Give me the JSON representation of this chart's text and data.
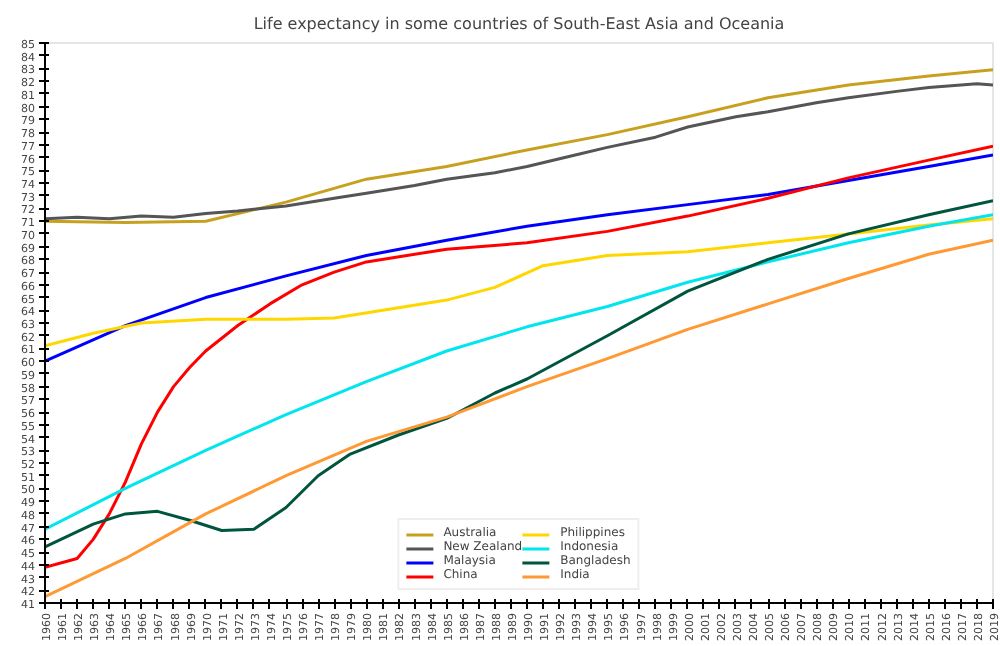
{
  "chart_data": {
    "type": "line",
    "title": "Life expectancy in some countries of South-East Asia and Oceania",
    "xlim": [
      1960,
      2019
    ],
    "xticks": [
      1960,
      1961,
      1962,
      1963,
      1964,
      1965,
      1966,
      1967,
      1968,
      1969,
      1970,
      1971,
      1972,
      1973,
      1974,
      1975,
      1976,
      1977,
      1978,
      1979,
      1980,
      1981,
      1982,
      1983,
      1984,
      1985,
      1986,
      1987,
      1988,
      1989,
      1990,
      1991,
      1992,
      1993,
      1994,
      1995,
      1996,
      1997,
      1998,
      1999,
      2000,
      2001,
      2002,
      2003,
      2004,
      2005,
      2006,
      2007,
      2008,
      2009,
      2010,
      2011,
      2012,
      2013,
      2014,
      2015,
      2016,
      2017,
      2018,
      2019
    ],
    "ylim": [
      41,
      85
    ],
    "yticks": [
      41,
      42,
      43,
      44,
      45,
      46,
      47,
      48,
      49,
      50,
      51,
      52,
      53,
      54,
      55,
      56,
      57,
      58,
      59,
      60,
      61,
      62,
      63,
      64,
      65,
      66,
      67,
      68,
      69,
      70,
      71,
      72,
      73,
      74,
      75,
      76,
      77,
      78,
      79,
      80,
      81,
      82,
      83,
      84,
      85
    ],
    "grid": false,
    "legend": "bottom",
    "line_style": "solid",
    "marker": "none",
    "series": [
      {
        "name": "Australia",
        "color": "#c8a020",
        "x": [
          1960,
          1965,
          1970,
          1975,
          1980,
          1985,
          1990,
          1995,
          2000,
          2005,
          2010,
          2015,
          2019
        ],
        "values": [
          71.0,
          70.9,
          71.0,
          72.5,
          74.3,
          75.3,
          76.6,
          77.8,
          79.2,
          80.7,
          81.7,
          82.4,
          82.9
        ]
      },
      {
        "name": "New Zealand",
        "color": "#555555",
        "x": [
          1960,
          1962,
          1964,
          1966,
          1968,
          1970,
          1972,
          1975,
          1978,
          1980,
          1983,
          1985,
          1988,
          1990,
          1993,
          1995,
          1998,
          2000,
          2003,
          2005,
          2008,
          2010,
          2013,
          2015,
          2018,
          2019
        ],
        "values": [
          71.2,
          71.3,
          71.2,
          71.4,
          71.3,
          71.6,
          71.8,
          72.2,
          72.8,
          73.2,
          73.8,
          74.3,
          74.8,
          75.3,
          76.2,
          76.8,
          77.6,
          78.4,
          79.2,
          79.6,
          80.3,
          80.7,
          81.2,
          81.5,
          81.8,
          81.7
        ]
      },
      {
        "name": "Malaysia",
        "color": "#0000ff",
        "x": [
          1960,
          1965,
          1970,
          1975,
          1980,
          1985,
          1990,
          1995,
          2000,
          2005,
          2010,
          2015,
          2019
        ],
        "values": [
          60.0,
          62.8,
          65.0,
          66.7,
          68.3,
          69.5,
          70.6,
          71.5,
          72.3,
          73.1,
          74.2,
          75.3,
          76.2
        ]
      },
      {
        "name": "China",
        "color": "#ff0000",
        "x": [
          1960,
          1962,
          1963,
          1964,
          1965,
          1966,
          1967,
          1968,
          1969,
          1970,
          1972,
          1974,
          1976,
          1978,
          1980,
          1985,
          1990,
          1995,
          2000,
          2005,
          2010,
          2015,
          2019
        ],
        "values": [
          43.8,
          44.5,
          46.0,
          48.0,
          50.5,
          53.5,
          56.0,
          58.0,
          59.5,
          60.8,
          62.8,
          64.5,
          66.0,
          67.0,
          67.8,
          68.8,
          69.3,
          70.2,
          71.4,
          72.8,
          74.4,
          75.8,
          76.9
        ]
      },
      {
        "name": "Philippines",
        "color": "#ffd700",
        "x": [
          1960,
          1963,
          1966,
          1970,
          1975,
          1978,
          1982,
          1985,
          1988,
          1991,
          1995,
          2000,
          2005,
          2010,
          2015,
          2019
        ],
        "values": [
          61.2,
          62.2,
          63.0,
          63.3,
          63.3,
          63.4,
          64.2,
          64.8,
          65.8,
          67.5,
          68.3,
          68.6,
          69.3,
          70.0,
          70.7,
          71.2
        ]
      },
      {
        "name": "Indonesia",
        "color": "#00e5ee",
        "x": [
          1960,
          1965,
          1970,
          1975,
          1980,
          1985,
          1990,
          1995,
          2000,
          2005,
          2010,
          2015,
          2019
        ],
        "values": [
          46.8,
          50.0,
          53.0,
          55.8,
          58.4,
          60.8,
          62.7,
          64.3,
          66.2,
          67.8,
          69.3,
          70.6,
          71.5
        ]
      },
      {
        "name": "Bangladesh",
        "color": "#00553f",
        "x": [
          1960,
          1963,
          1965,
          1967,
          1969,
          1971,
          1973,
          1975,
          1977,
          1979,
          1982,
          1985,
          1988,
          1990,
          1995,
          2000,
          2005,
          2010,
          2015,
          2019
        ],
        "values": [
          45.4,
          47.2,
          48.0,
          48.2,
          47.5,
          46.7,
          46.8,
          48.5,
          51.0,
          52.7,
          54.2,
          55.5,
          57.5,
          58.6,
          62.0,
          65.5,
          68.0,
          70.0,
          71.5,
          72.6
        ]
      },
      {
        "name": "India",
        "color": "#ff9933",
        "x": [
          1960,
          1965,
          1970,
          1975,
          1980,
          1985,
          1990,
          1995,
          2000,
          2005,
          2010,
          2015,
          2019
        ],
        "values": [
          41.5,
          44.5,
          48.0,
          51.0,
          53.7,
          55.6,
          58.0,
          60.2,
          62.5,
          64.5,
          66.5,
          68.4,
          69.5
        ]
      }
    ]
  }
}
